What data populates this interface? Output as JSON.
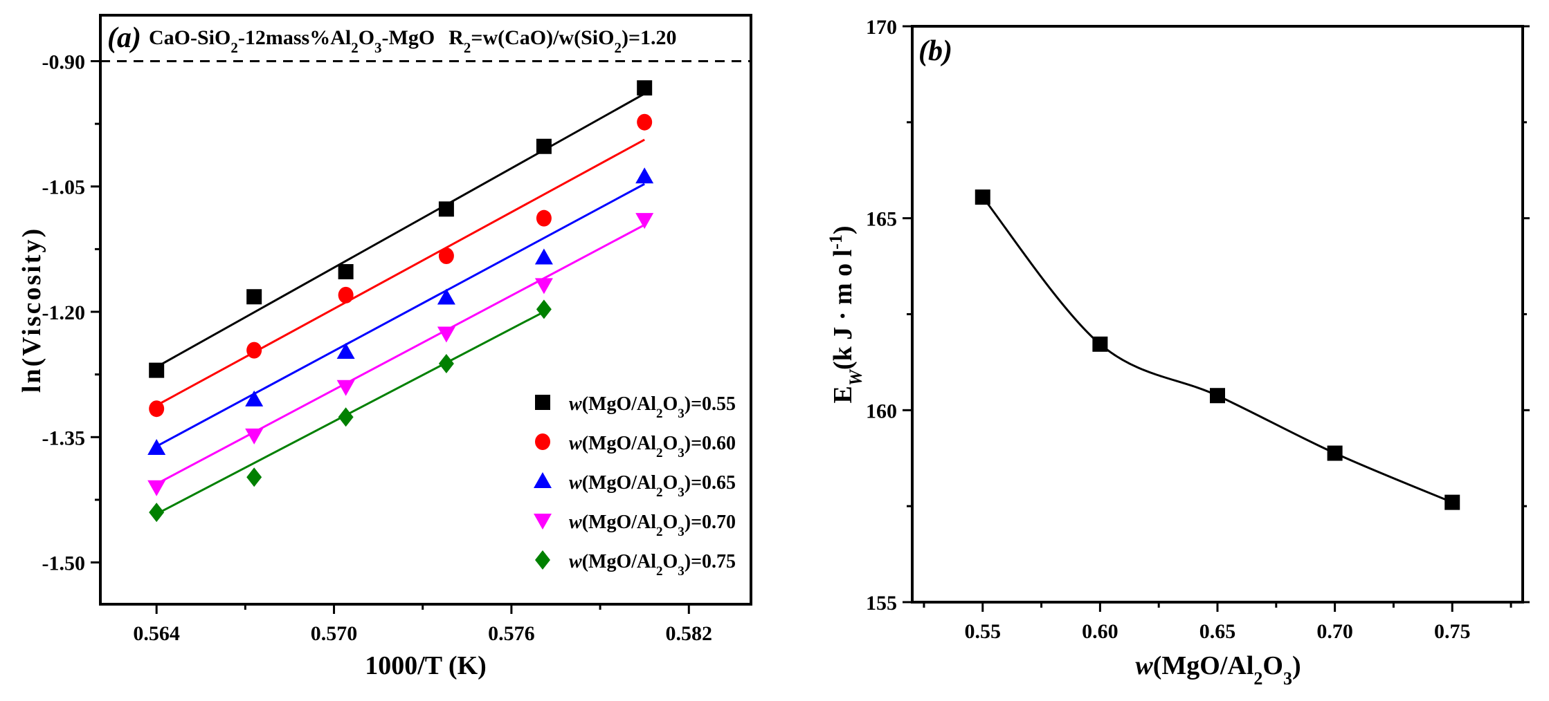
{
  "chart_data": [
    {
      "panel": "(a)",
      "type": "scatter",
      "title": "CaO-SiO2-12mass%Al2O3-MgO  R2=w(CaO)/w(SiO2)=1.20",
      "title_parts": {
        "system": {
          "t1": "CaO-SiO",
          "s1": "2",
          "t2": "-12mass%Al",
          "s2": "2",
          "t3": "O",
          "s3": "3",
          "t4": "-MgO"
        },
        "ratio": {
          "t1": "R",
          "s1": "2",
          "t2": "=w(CaO)/w(SiO",
          "s2": "2",
          "t3": ")=1.20"
        }
      },
      "xlabel": "1000/T (K)",
      "ylabel": "ln(Viscosity)",
      "xlim": [
        0.5621,
        0.5841
      ],
      "ylim": [
        -1.55,
        -0.845
      ],
      "xticks": [
        0.564,
        0.57,
        0.576,
        0.582
      ],
      "xtick_labels": [
        "0.564",
        "0.570",
        "0.576",
        "0.582"
      ],
      "yticks": [
        -0.9,
        -1.05,
        -1.2,
        -1.35,
        -1.5
      ],
      "ytick_labels": [
        "-0.90",
        "-1.05",
        "-1.20",
        "-1.35",
        "-1.50"
      ],
      "reference_line": {
        "y": -0.9,
        "style": "dashed"
      },
      "x": [
        0.564,
        0.5673,
        0.5704,
        0.5738,
        0.5771,
        0.5805
      ],
      "series": [
        {
          "name": "w(MgO/Al2O3)=0.55",
          "legend_label": {
            "pre": "w",
            "mid": "(MgO/Al",
            "s1": "2",
            "mid2": "O",
            "s2": "3",
            "post": ")=0.55"
          },
          "color": "#000000",
          "marker": "square",
          "values": [
            -1.27,
            -1.182,
            -1.152,
            -1.077,
            -1.002,
            -0.932
          ],
          "fit": [
            -1.266,
            -0.939
          ]
        },
        {
          "name": "w(MgO/Al2O3)=0.60",
          "legend_label": {
            "pre": "w",
            "mid": "(MgO/Al",
            "s1": "2",
            "mid2": "O",
            "s3": "",
            "s2": "3",
            "post": ")=0.60"
          },
          "color": "#ff0000",
          "marker": "circle",
          "values": [
            -1.316,
            -1.246,
            -1.18,
            -1.133,
            -1.088,
            -0.973
          ],
          "fit": [
            -1.312,
            -0.994
          ]
        },
        {
          "name": "w(MgO/Al2O3)=0.65",
          "legend_label": {
            "pre": "w",
            "mid": "(MgO/Al",
            "s1": "2",
            "mid2": "O",
            "s2": "3",
            "post": ")=0.65"
          },
          "color": "#0000ff",
          "marker": "triangle-up",
          "values": [
            -1.363,
            -1.305,
            -1.248,
            -1.183,
            -1.135,
            -1.038
          ],
          "fit": [
            -1.361,
            -1.047
          ]
        },
        {
          "name": "w(MgO/Al2O3)=0.70",
          "legend_label": {
            "pre": "w",
            "mid": "(MgO/Al",
            "s1": "2",
            "mid2": "O",
            "s2": "3",
            "post": ")=0.70"
          },
          "color": "#ff00ff",
          "marker": "triangle-down",
          "values": [
            -1.41,
            -1.348,
            -1.29,
            -1.226,
            -1.168,
            -1.09
          ],
          "fit": [
            -1.406,
            -1.096
          ]
        },
        {
          "name": "w(MgO/Al2O3)=0.75",
          "legend_label": {
            "pre": "w",
            "mid": "(MgO/Al",
            "s1": "2",
            "mid2": "O",
            "s2": "3",
            "post": ")=0.75"
          },
          "color": "#008000",
          "marker": "diamond",
          "values": [
            -1.44,
            -1.398,
            -1.326,
            -1.262,
            -1.197,
            null
          ],
          "fit_x": [
            0.564,
            0.5771
          ],
          "fit": [
            -1.442,
            -1.2
          ]
        }
      ]
    },
    {
      "panel": "(b)",
      "type": "line",
      "title": "",
      "xlabel": "w(MgO/Al2O3)",
      "xlabel_parts": {
        "pre": "w",
        "t1": "(MgO/Al",
        "s1": "2",
        "t2": "O",
        "s2": "3",
        "t3": ")"
      },
      "ylabel": "EW(kJ·mol-1)",
      "ylabel_parts": {
        "t1": "E",
        "sub": "W",
        "t2": "(k J · m o l",
        "sup": "-1",
        "t3": ")"
      },
      "xlim": [
        0.52,
        0.78
      ],
      "ylim": [
        155,
        170
      ],
      "xticks": [
        0.55,
        0.6,
        0.65,
        0.7,
        0.75
      ],
      "xtick_labels": [
        "0.55",
        "0.60",
        "0.65",
        "0.70",
        "0.75"
      ],
      "yticks": [
        155,
        160,
        165,
        170
      ],
      "ytick_labels": [
        "155",
        "160",
        "165",
        "170"
      ],
      "color": "#000000",
      "marker": "square",
      "x": [
        0.55,
        0.6,
        0.65,
        0.7,
        0.75
      ],
      "values": [
        165.55,
        161.72,
        160.38,
        158.88,
        157.6
      ]
    }
  ]
}
